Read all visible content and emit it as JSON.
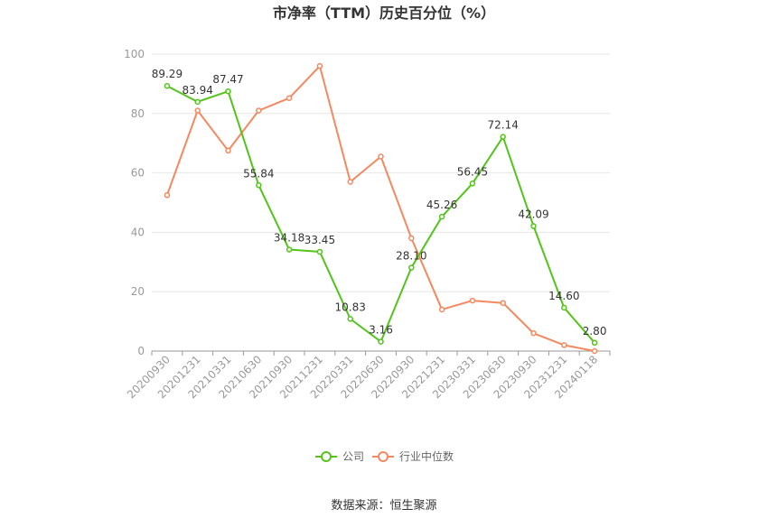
{
  "chart_data": {
    "type": "line",
    "title": "市净率（TTM）历史百分位（%）",
    "categories": [
      "20200930",
      "20201231",
      "20210331",
      "20210630",
      "20210930",
      "20211231",
      "20220331",
      "20220630",
      "20220930",
      "20221231",
      "20230331",
      "20230630",
      "20230930",
      "20231231",
      "20240118"
    ],
    "ylim": [
      0,
      100
    ],
    "yticks": [
      "0",
      "20",
      "40",
      "60",
      "80",
      "100"
    ],
    "grid": true,
    "legend_position": "bottom",
    "series": [
      {
        "name": "公司",
        "color": "#52c41a",
        "values": [
          89.29,
          83.94,
          87.47,
          55.84,
          34.18,
          33.45,
          10.83,
          3.16,
          28.1,
          45.26,
          56.45,
          72.14,
          42.09,
          14.6,
          2.8
        ],
        "labels": [
          "89.29",
          "83.94",
          "87.47",
          "55.84",
          "34.18",
          "33.45",
          "10.83",
          "3.16",
          "28.10",
          "45.26",
          "56.45",
          "72.14",
          "42.09",
          "14.60",
          "2.80"
        ]
      },
      {
        "name": "行业中位数",
        "color": "#f4895f",
        "values": [
          52.5,
          81.0,
          67.5,
          81.0,
          85.2,
          96.0,
          57.0,
          65.5,
          38.0,
          14.0,
          17.0,
          16.2,
          6.0,
          2.0,
          0.0
        ]
      }
    ],
    "source": "数据来源：恒生聚源"
  }
}
